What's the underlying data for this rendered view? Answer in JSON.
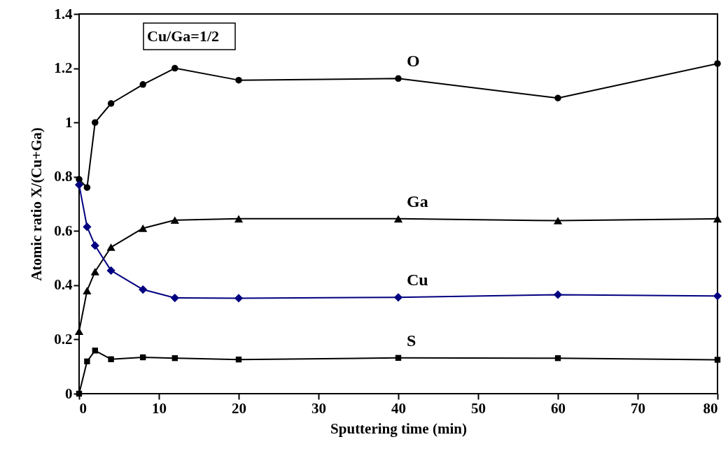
{
  "chart_data": {
    "type": "line",
    "xlabel": "Sputtering time (min)",
    "ylabel": "Atomic ratio X/(Cu+Ga)",
    "x": [
      0,
      1,
      2,
      4,
      8,
      12,
      20,
      40,
      60,
      80
    ],
    "series": [
      {
        "name": "O",
        "color": "#000000",
        "marker": "circle",
        "values": [
          0.79,
          0.76,
          1.0,
          1.07,
          1.14,
          1.2,
          1.156,
          1.162,
          1.09,
          1.217
        ]
      },
      {
        "name": "Ga",
        "color": "#000000",
        "marker": "triangle",
        "values": [
          0.23,
          0.38,
          0.45,
          0.54,
          0.61,
          0.64,
          0.645,
          0.645,
          0.638,
          0.645
        ]
      },
      {
        "name": "Cu",
        "color": "#000080",
        "marker": "diamond",
        "values": [
          0.77,
          0.615,
          0.546,
          0.454,
          0.384,
          0.353,
          0.352,
          0.355,
          0.365,
          0.36
        ]
      },
      {
        "name": "S",
        "color": "#000000",
        "marker": "square",
        "values": [
          0,
          0.119,
          0.159,
          0.127,
          0.134,
          0.131,
          0.126,
          0.132,
          0.131,
          0.125
        ]
      }
    ],
    "annotations": [
      "Cu/Ga=1/2"
    ],
    "xlim": [
      0,
      80
    ],
    "xticks": [
      0,
      10,
      20,
      30,
      40,
      50,
      60,
      70,
      80
    ],
    "ylim": [
      0,
      1.4
    ],
    "yticks": [
      0,
      0.2,
      0.4,
      0.6,
      0.8,
      1,
      1.2,
      1.4
    ],
    "grid": false
  }
}
